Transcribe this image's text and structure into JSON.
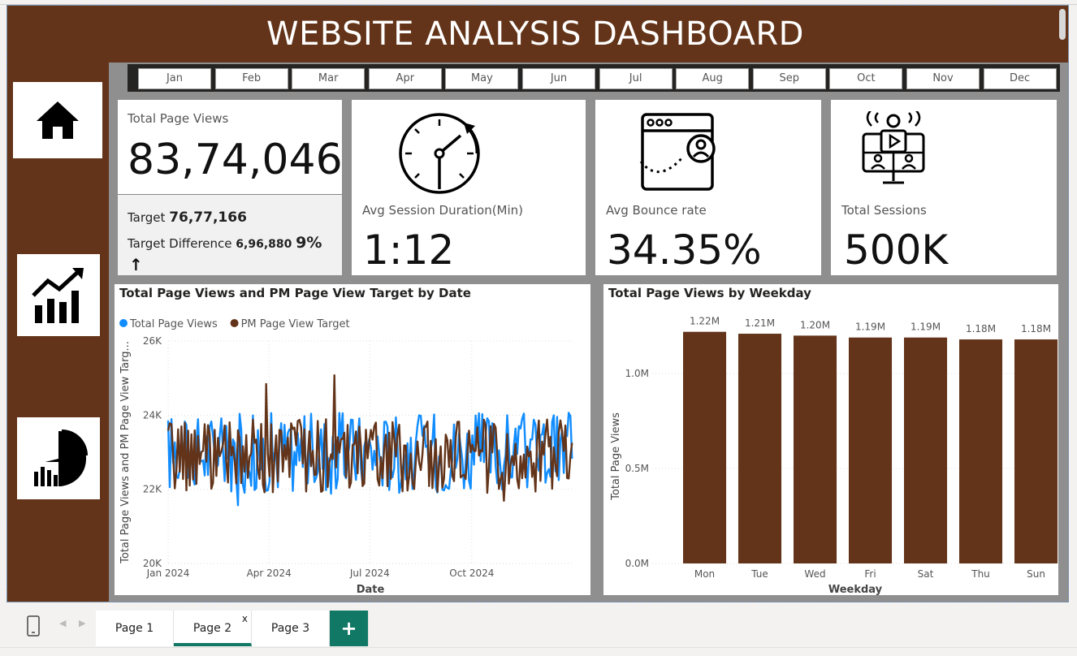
{
  "dashboard": {
    "title": "WEBSITE ANALYSIS DASHBOARD"
  },
  "months": [
    "Jan",
    "Feb",
    "Mar",
    "Apr",
    "May",
    "Jun",
    "Jul",
    "Aug",
    "Sep",
    "Oct",
    "Nov",
    "Dec"
  ],
  "nav": [
    {
      "icon": "home-icon"
    },
    {
      "icon": "line-chart-icon"
    },
    {
      "icon": "pie-bar-chart-icon"
    }
  ],
  "kpi": {
    "total_page_views": {
      "label": "Total Page Views",
      "value": "83,74,046",
      "target_label": "Target",
      "target_value": "76,77,166",
      "difference_label": "Target Difference",
      "difference_value": "6,96,880",
      "difference_pct": "9%",
      "trend_glyph": "↑"
    },
    "avg_session": {
      "label": "Avg Session Duration(Min)",
      "value": "1:12",
      "icon": "stopwatch-icon"
    },
    "bounce": {
      "label": "Avg Bounce rate",
      "value": "34.35%",
      "icon": "browser-user-icon"
    },
    "sessions": {
      "label": "Total Sessions",
      "value": "500K",
      "icon": "video-conference-icon"
    }
  },
  "colors": {
    "brown": "#633419",
    "blue": "#118dff",
    "dark": "#252423"
  },
  "tabs": {
    "page1": "Page 1",
    "page2": "Page 2",
    "page3": "Page 3",
    "close": "x",
    "add": "+"
  },
  "chart_data": [
    {
      "type": "line",
      "title": "Total Page Views and PM Page View Target by Date",
      "xlabel": "Date",
      "ylabel": "Total Page Views and PM Page View Targ...",
      "x_ticks": [
        "Jan 2024",
        "Apr 2024",
        "Jul 2024",
        "Oct 2024"
      ],
      "y_ticks": [
        "20K",
        "22K",
        "24K",
        "26K"
      ],
      "ylim": [
        20000,
        26000
      ],
      "legend_position": "top-left",
      "series": [
        {
          "name": "Total Page Views",
          "color": "#118dff",
          "mean": 23000,
          "spread": 1100
        },
        {
          "name": "PM Page View Target",
          "color": "#633419",
          "mean": 22900,
          "spread": 1000
        }
      ]
    },
    {
      "type": "bar",
      "title": "Total Page Views by Weekday",
      "xlabel": "Weekday",
      "ylabel": "Total Page Views",
      "categories": [
        "Mon",
        "Tue",
        "Wed",
        "Fri",
        "Sat",
        "Thu",
        "Sun"
      ],
      "values": [
        1.22,
        1.21,
        1.2,
        1.19,
        1.19,
        1.18,
        1.18
      ],
      "data_labels": [
        "1.22M",
        "1.21M",
        "1.20M",
        "1.19M",
        "1.19M",
        "1.18M",
        "1.18M"
      ],
      "y_ticks": [
        "0.0M",
        "0.5M",
        "1.0M"
      ],
      "ylim": [
        0,
        1.3
      ],
      "color": "#633419"
    }
  ]
}
